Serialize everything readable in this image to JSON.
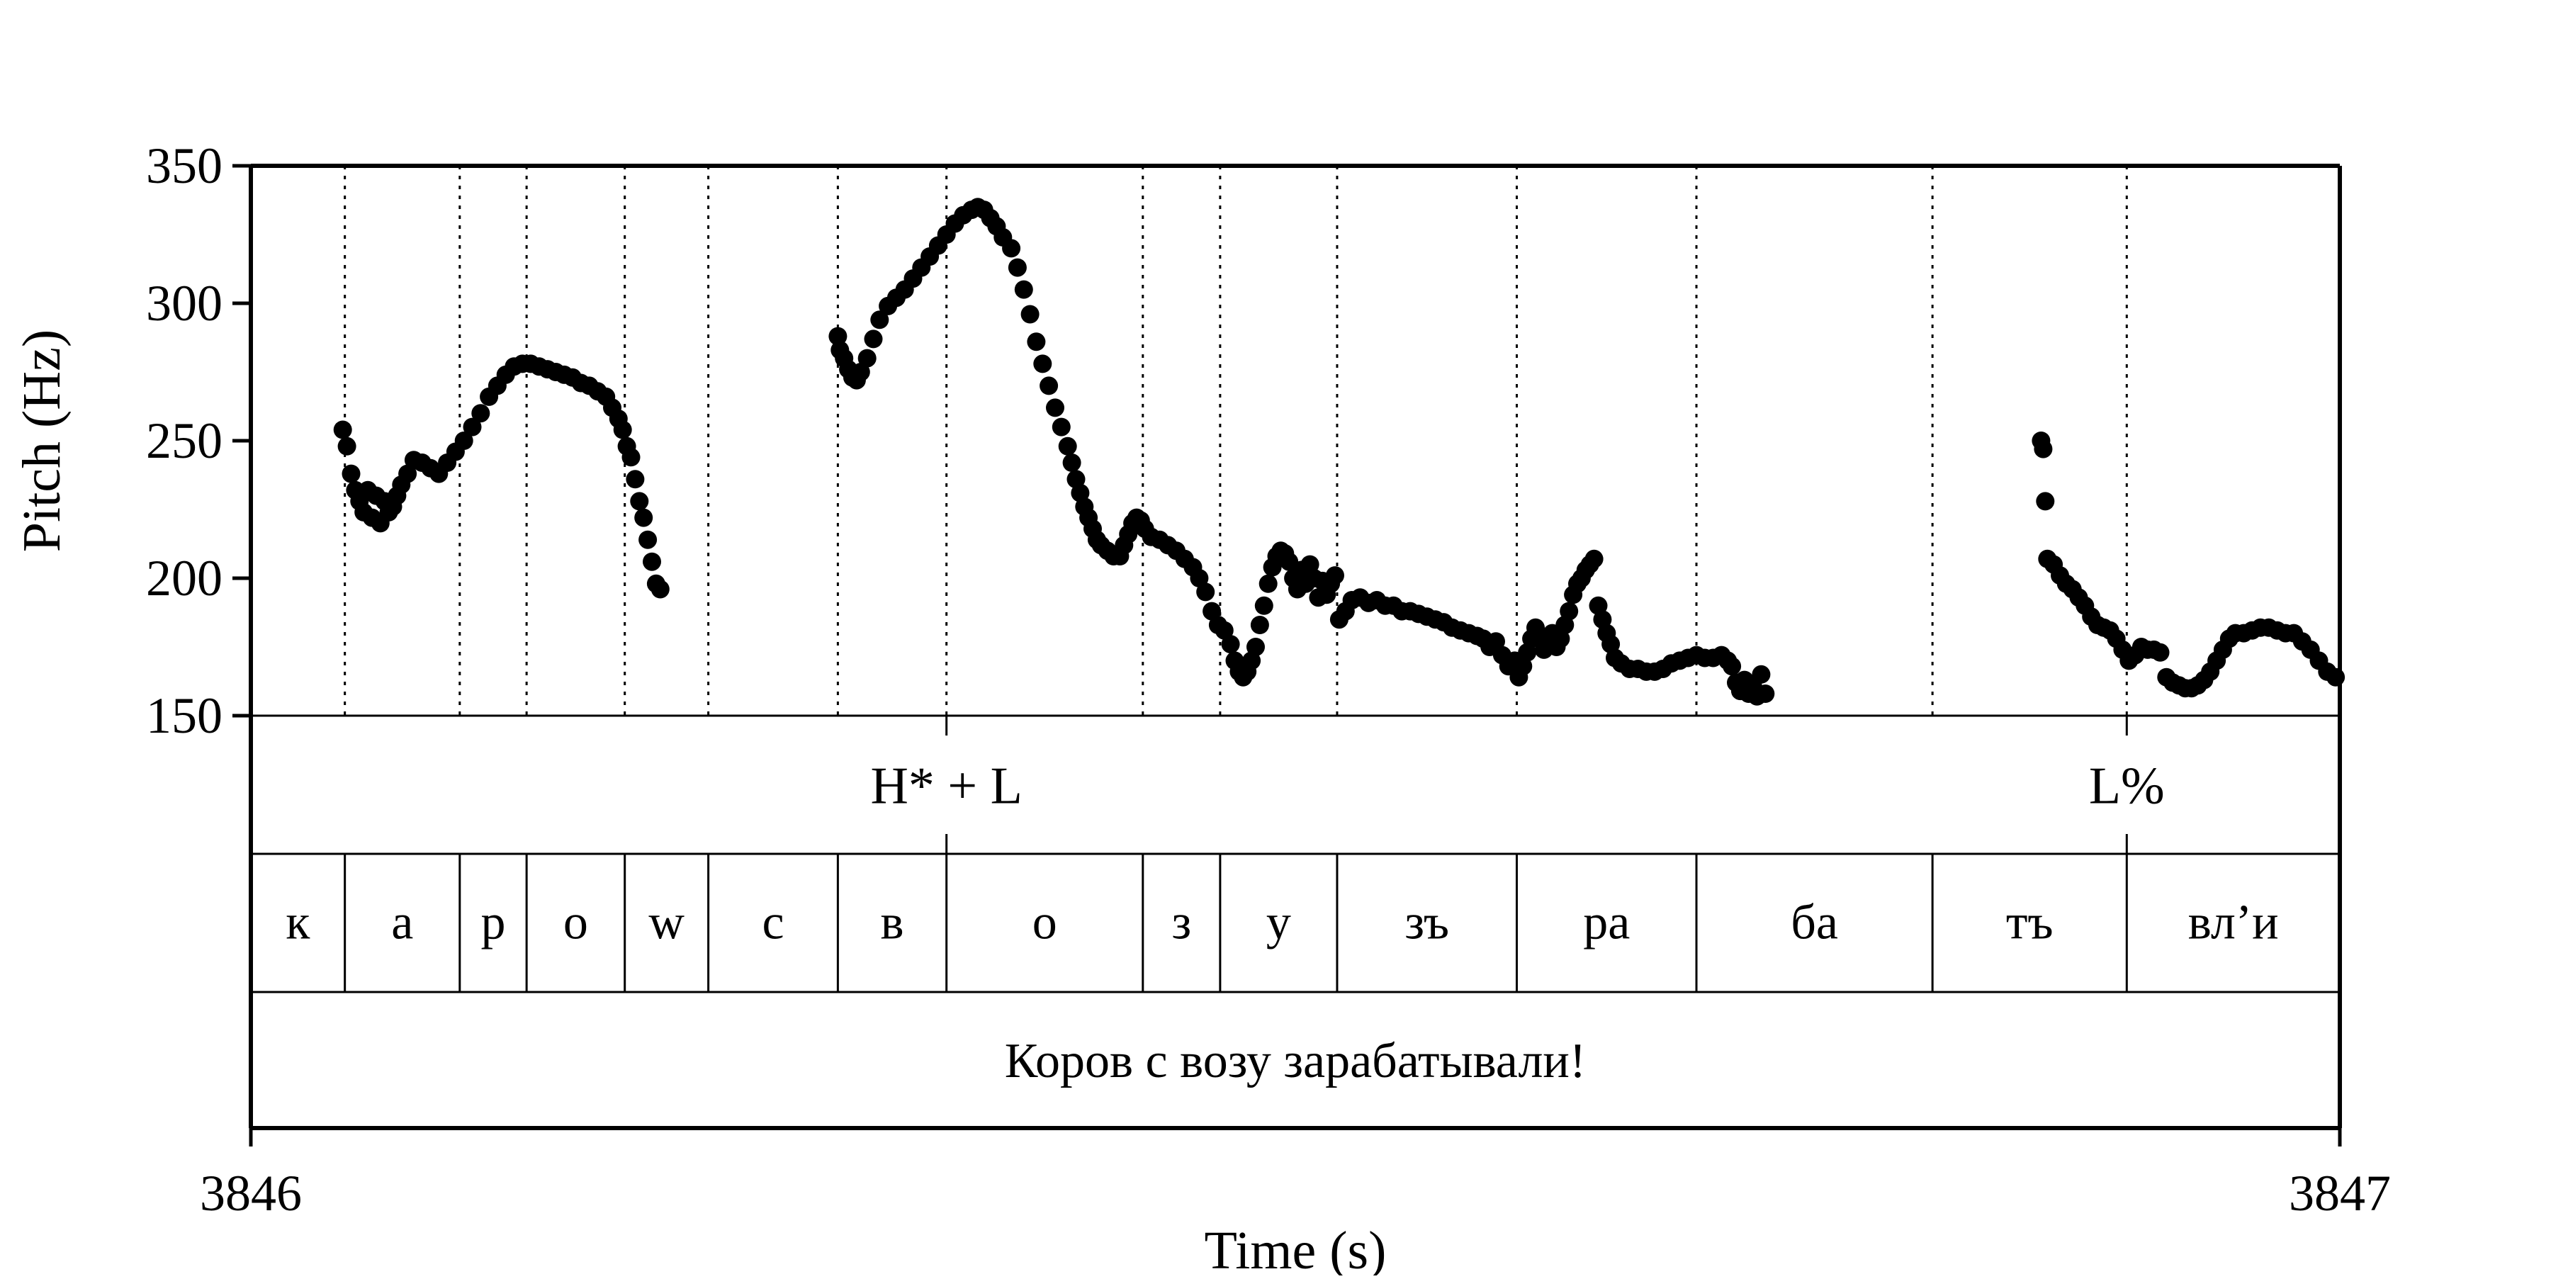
{
  "chart_data": {
    "type": "scatter",
    "xlabel": "Time (s)",
    "ylabel": "Pitch (Hz)",
    "xlim": [
      3846,
      3847
    ],
    "ylim": [
      150,
      350
    ],
    "x_ticks": [
      "3846",
      "3847"
    ],
    "y_ticks": [
      "150",
      "200",
      "250",
      "300",
      "350"
    ],
    "marker_color": "#000000",
    "tone_tier": [
      {
        "label": "H* + L",
        "t": 3846.333
      },
      {
        "label": "L%",
        "t": 3846.898
      }
    ],
    "segment_boundaries": [
      3846.045,
      3846.1,
      3846.132,
      3846.179,
      3846.219,
      3846.281,
      3846.333,
      3846.427,
      3846.464,
      3846.52,
      3846.606,
      3846.692,
      3846.805,
      3846.898
    ],
    "segments": [
      {
        "label": "к",
        "start": 3846.0,
        "end": 3846.045
      },
      {
        "label": "а",
        "start": 3846.045,
        "end": 3846.1
      },
      {
        "label": "р",
        "start": 3846.1,
        "end": 3846.132
      },
      {
        "label": "о",
        "start": 3846.132,
        "end": 3846.179
      },
      {
        "label": "w",
        "start": 3846.179,
        "end": 3846.219
      },
      {
        "label": "с",
        "start": 3846.219,
        "end": 3846.281
      },
      {
        "label": "в",
        "start": 3846.281,
        "end": 3846.333
      },
      {
        "label": "о",
        "start": 3846.333,
        "end": 3846.427
      },
      {
        "label": "з",
        "start": 3846.427,
        "end": 3846.464
      },
      {
        "label": "у",
        "start": 3846.464,
        "end": 3846.52
      },
      {
        "label": "зъ",
        "start": 3846.52,
        "end": 3846.606
      },
      {
        "label": "ра",
        "start": 3846.606,
        "end": 3846.692
      },
      {
        "label": "ба",
        "start": 3846.692,
        "end": 3846.805
      },
      {
        "label": "тъ",
        "start": 3846.805,
        "end": 3846.898
      },
      {
        "label": "вл’и",
        "start": 3846.898,
        "end": 3847.0
      }
    ],
    "utterance": "Коров с возу зарабатывали!",
    "pitch_track": [
      [
        3846.044,
        254
      ],
      [
        3846.046,
        248
      ],
      [
        3846.048,
        238
      ],
      [
        3846.05,
        232
      ],
      [
        3846.052,
        228
      ],
      [
        3846.054,
        224
      ],
      [
        3846.056,
        232
      ],
      [
        3846.058,
        222
      ],
      [
        3846.06,
        230
      ],
      [
        3846.062,
        220
      ],
      [
        3846.064,
        228
      ],
      [
        3846.066,
        224
      ],
      [
        3846.068,
        226
      ],
      [
        3846.07,
        230
      ],
      [
        3846.072,
        234
      ],
      [
        3846.075,
        238
      ],
      [
        3846.078,
        243
      ],
      [
        3846.082,
        242
      ],
      [
        3846.086,
        240
      ],
      [
        3846.09,
        238
      ],
      [
        3846.094,
        242
      ],
      [
        3846.098,
        246
      ],
      [
        3846.102,
        250
      ],
      [
        3846.106,
        255
      ],
      [
        3846.11,
        260
      ],
      [
        3846.114,
        266
      ],
      [
        3846.118,
        270
      ],
      [
        3846.122,
        274
      ],
      [
        3846.126,
        277
      ],
      [
        3846.13,
        278
      ],
      [
        3846.134,
        278
      ],
      [
        3846.138,
        277
      ],
      [
        3846.142,
        276
      ],
      [
        3846.146,
        275
      ],
      [
        3846.15,
        274
      ],
      [
        3846.154,
        273
      ],
      [
        3846.158,
        271
      ],
      [
        3846.162,
        270
      ],
      [
        3846.166,
        268
      ],
      [
        3846.17,
        266
      ],
      [
        3846.173,
        262
      ],
      [
        3846.176,
        258
      ],
      [
        3846.178,
        254
      ],
      [
        3846.18,
        248
      ],
      [
        3846.182,
        244
      ],
      [
        3846.184,
        236
      ],
      [
        3846.186,
        228
      ],
      [
        3846.188,
        222
      ],
      [
        3846.19,
        214
      ],
      [
        3846.192,
        206
      ],
      [
        3846.194,
        198
      ],
      [
        3846.196,
        196
      ],
      [
        3846.281,
        288
      ],
      [
        3846.282,
        283
      ],
      [
        3846.284,
        280
      ],
      [
        3846.286,
        276
      ],
      [
        3846.288,
        273
      ],
      [
        3846.29,
        272
      ],
      [
        3846.292,
        275
      ],
      [
        3846.295,
        280
      ],
      [
        3846.298,
        287
      ],
      [
        3846.301,
        294
      ],
      [
        3846.305,
        299
      ],
      [
        3846.309,
        302
      ],
      [
        3846.313,
        305
      ],
      [
        3846.317,
        309
      ],
      [
        3846.321,
        313
      ],
      [
        3846.325,
        317
      ],
      [
        3846.329,
        321
      ],
      [
        3846.333,
        325
      ],
      [
        3846.337,
        329
      ],
      [
        3846.341,
        332
      ],
      [
        3846.345,
        334
      ],
      [
        3846.348,
        335
      ],
      [
        3846.351,
        334
      ],
      [
        3846.354,
        331
      ],
      [
        3846.357,
        328
      ],
      [
        3846.36,
        324
      ],
      [
        3846.364,
        320
      ],
      [
        3846.367,
        313
      ],
      [
        3846.37,
        305
      ],
      [
        3846.373,
        296
      ],
      [
        3846.376,
        286
      ],
      [
        3846.379,
        278
      ],
      [
        3846.382,
        270
      ],
      [
        3846.385,
        262
      ],
      [
        3846.388,
        255
      ],
      [
        3846.391,
        248
      ],
      [
        3846.393,
        242
      ],
      [
        3846.395,
        236
      ],
      [
        3846.397,
        231
      ],
      [
        3846.399,
        226
      ],
      [
        3846.401,
        222
      ],
      [
        3846.403,
        218
      ],
      [
        3846.405,
        214
      ],
      [
        3846.407,
        212
      ],
      [
        3846.41,
        210
      ],
      [
        3846.413,
        208
      ],
      [
        3846.416,
        208
      ],
      [
        3846.418,
        212
      ],
      [
        3846.42,
        216
      ],
      [
        3846.422,
        220
      ],
      [
        3846.424,
        222
      ],
      [
        3846.426,
        221
      ],
      [
        3846.428,
        218
      ],
      [
        3846.431,
        215
      ],
      [
        3846.435,
        214
      ],
      [
        3846.439,
        212
      ],
      [
        3846.443,
        210
      ],
      [
        3846.447,
        207
      ],
      [
        3846.451,
        204
      ],
      [
        3846.454,
        200
      ],
      [
        3846.457,
        195
      ],
      [
        3846.46,
        188
      ],
      [
        3846.463,
        183
      ],
      [
        3846.466,
        181
      ],
      [
        3846.469,
        176
      ],
      [
        3846.471,
        170
      ],
      [
        3846.473,
        166
      ],
      [
        3846.475,
        164
      ],
      [
        3846.477,
        166
      ],
      [
        3846.479,
        170
      ],
      [
        3846.481,
        175
      ],
      [
        3846.483,
        183
      ],
      [
        3846.485,
        190
      ],
      [
        3846.487,
        198
      ],
      [
        3846.489,
        204
      ],
      [
        3846.491,
        208
      ],
      [
        3846.493,
        210
      ],
      [
        3846.495,
        209
      ],
      [
        3846.497,
        206
      ],
      [
        3846.499,
        200
      ],
      [
        3846.501,
        196
      ],
      [
        3846.503,
        203
      ],
      [
        3846.505,
        198
      ],
      [
        3846.507,
        205
      ],
      [
        3846.509,
        200
      ],
      [
        3846.511,
        193
      ],
      [
        3846.513,
        199
      ],
      [
        3846.515,
        194
      ],
      [
        3846.517,
        198
      ],
      [
        3846.519,
        201
      ],
      [
        3846.521,
        185
      ],
      [
        3846.524,
        188
      ],
      [
        3846.527,
        192
      ],
      [
        3846.531,
        193
      ],
      [
        3846.535,
        191
      ],
      [
        3846.539,
        192
      ],
      [
        3846.543,
        190
      ],
      [
        3846.547,
        190
      ],
      [
        3846.551,
        188
      ],
      [
        3846.555,
        188
      ],
      [
        3846.559,
        187
      ],
      [
        3846.563,
        186
      ],
      [
        3846.567,
        185
      ],
      [
        3846.571,
        184
      ],
      [
        3846.575,
        182
      ],
      [
        3846.579,
        181
      ],
      [
        3846.583,
        180
      ],
      [
        3846.587,
        179
      ],
      [
        3846.59,
        178
      ],
      [
        3846.593,
        175
      ],
      [
        3846.596,
        177
      ],
      [
        3846.599,
        172
      ],
      [
        3846.602,
        168
      ],
      [
        3846.605,
        170
      ],
      [
        3846.607,
        164
      ],
      [
        3846.609,
        168
      ],
      [
        3846.611,
        173
      ],
      [
        3846.613,
        178
      ],
      [
        3846.615,
        182
      ],
      [
        3846.617,
        179
      ],
      [
        3846.619,
        174
      ],
      [
        3846.621,
        176
      ],
      [
        3846.623,
        180
      ],
      [
        3846.625,
        175
      ],
      [
        3846.627,
        178
      ],
      [
        3846.629,
        183
      ],
      [
        3846.631,
        188
      ],
      [
        3846.633,
        194
      ],
      [
        3846.635,
        198
      ],
      [
        3846.637,
        200
      ],
      [
        3846.639,
        203
      ],
      [
        3846.641,
        205
      ],
      [
        3846.643,
        207
      ],
      [
        3846.645,
        190
      ],
      [
        3846.647,
        185
      ],
      [
        3846.649,
        180
      ],
      [
        3846.651,
        176
      ],
      [
        3846.653,
        171
      ],
      [
        3846.656,
        169
      ],
      [
        3846.66,
        167
      ],
      [
        3846.664,
        167
      ],
      [
        3846.668,
        166
      ],
      [
        3846.672,
        166
      ],
      [
        3846.676,
        167
      ],
      [
        3846.68,
        169
      ],
      [
        3846.684,
        170
      ],
      [
        3846.688,
        171
      ],
      [
        3846.692,
        172
      ],
      [
        3846.696,
        171
      ],
      [
        3846.7,
        171
      ],
      [
        3846.704,
        172
      ],
      [
        3846.707,
        170
      ],
      [
        3846.709,
        168
      ],
      [
        3846.711,
        162
      ],
      [
        3846.713,
        159
      ],
      [
        3846.715,
        163
      ],
      [
        3846.717,
        158
      ],
      [
        3846.719,
        161
      ],
      [
        3846.721,
        157
      ],
      [
        3846.723,
        165
      ],
      [
        3846.725,
        158
      ],
      [
        3846.857,
        250
      ],
      [
        3846.858,
        247
      ],
      [
        3846.859,
        228
      ],
      [
        3846.86,
        207
      ],
      [
        3846.863,
        205
      ],
      [
        3846.866,
        201
      ],
      [
        3846.869,
        198
      ],
      [
        3846.872,
        196
      ],
      [
        3846.875,
        193
      ],
      [
        3846.878,
        190
      ],
      [
        3846.881,
        186
      ],
      [
        3846.884,
        183
      ],
      [
        3846.887,
        182
      ],
      [
        3846.89,
        181
      ],
      [
        3846.893,
        178
      ],
      [
        3846.896,
        174
      ],
      [
        3846.899,
        170
      ],
      [
        3846.902,
        172
      ],
      [
        3846.905,
        175
      ],
      [
        3846.908,
        174
      ],
      [
        3846.911,
        174
      ],
      [
        3846.914,
        173
      ],
      [
        3846.917,
        164
      ],
      [
        3846.92,
        162
      ],
      [
        3846.923,
        161
      ],
      [
        3846.926,
        160
      ],
      [
        3846.929,
        160
      ],
      [
        3846.932,
        161
      ],
      [
        3846.935,
        163
      ],
      [
        3846.938,
        166
      ],
      [
        3846.941,
        170
      ],
      [
        3846.944,
        174
      ],
      [
        3846.947,
        178
      ],
      [
        3846.95,
        180
      ],
      [
        3846.954,
        180
      ],
      [
        3846.958,
        181
      ],
      [
        3846.962,
        182
      ],
      [
        3846.966,
        182
      ],
      [
        3846.97,
        181
      ],
      [
        3846.974,
        180
      ],
      [
        3846.978,
        180
      ],
      [
        3846.982,
        177
      ],
      [
        3846.986,
        174
      ],
      [
        3846.99,
        170
      ],
      [
        3846.994,
        166
      ],
      [
        3846.998,
        164
      ]
    ]
  }
}
